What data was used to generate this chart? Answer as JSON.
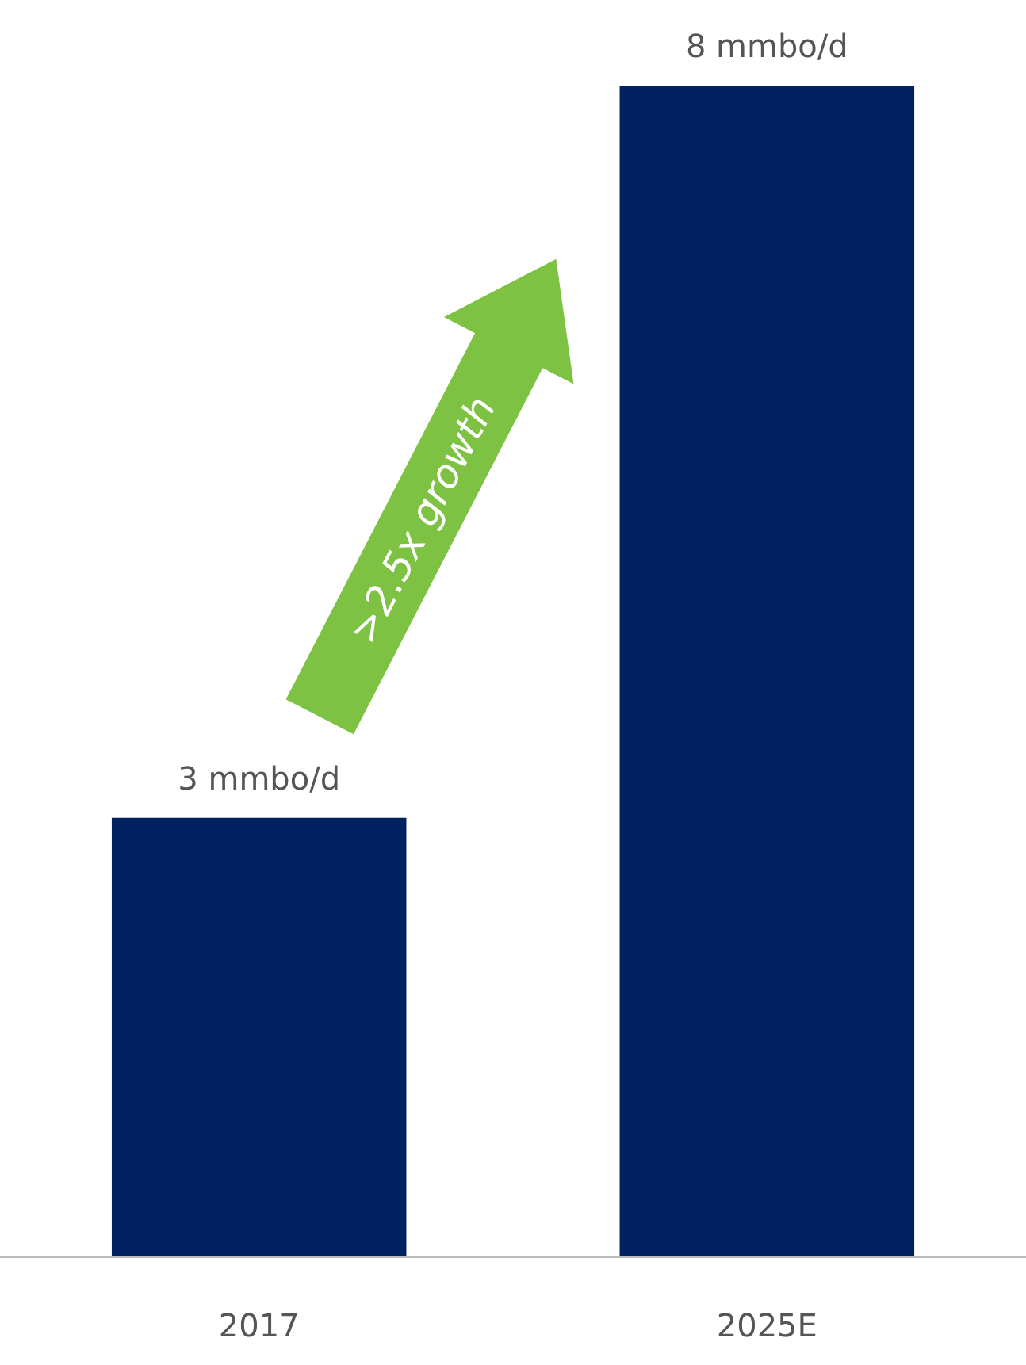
{
  "chart_data": {
    "type": "bar",
    "categories": [
      "2017",
      "2025E"
    ],
    "values": [
      3,
      8
    ],
    "color": "#012161",
    "value_labels": [
      "3 mmbo/d",
      "8 mmbo/d"
    ],
    "annotations": [
      ">2.5x growth"
    ]
  }
}
